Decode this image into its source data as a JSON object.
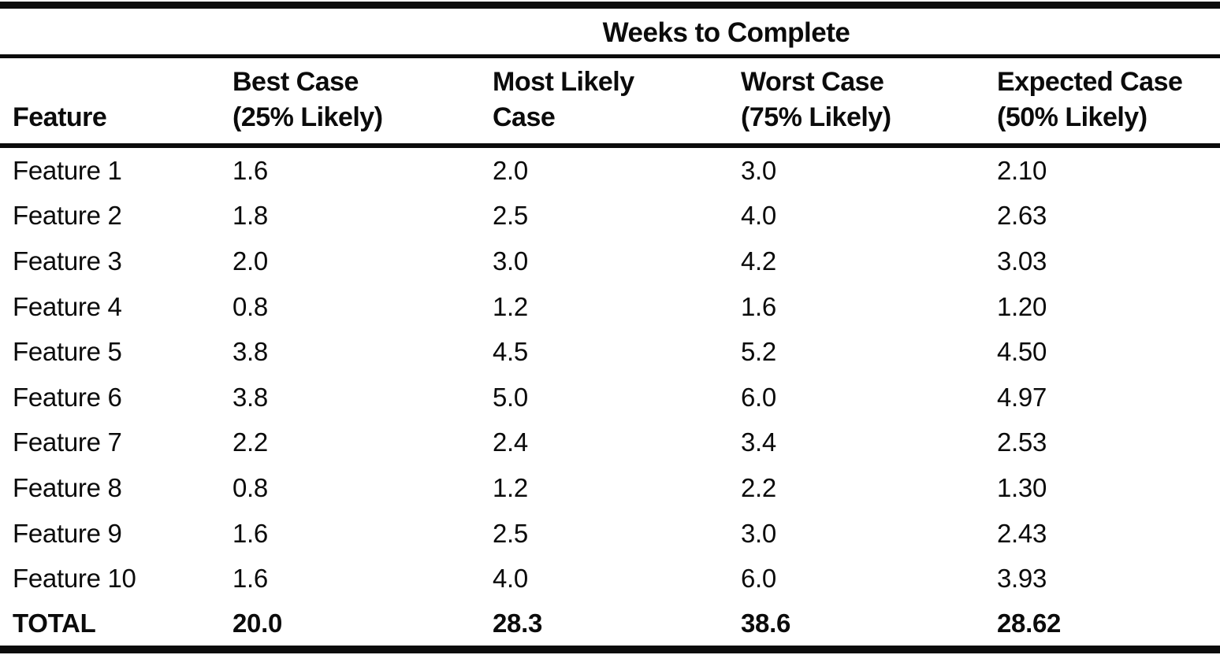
{
  "table": {
    "spanner": "Weeks to Complete",
    "feature_header": "Feature",
    "col_headers": [
      {
        "line1": "Best Case",
        "line2": "(25% Likely)"
      },
      {
        "line1": "Most Likely",
        "line2": "Case"
      },
      {
        "line1": "Worst Case",
        "line2": "(75% Likely)"
      },
      {
        "line1": "Expected Case",
        "line2": "(50% Likely)"
      }
    ],
    "rows": [
      {
        "feature": "Feature 1",
        "best": "1.6",
        "likely": "2.0",
        "worst": "3.0",
        "expected": "2.10"
      },
      {
        "feature": "Feature 2",
        "best": "1.8",
        "likely": "2.5",
        "worst": "4.0",
        "expected": "2.63"
      },
      {
        "feature": "Feature 3",
        "best": "2.0",
        "likely": "3.0",
        "worst": "4.2",
        "expected": "3.03"
      },
      {
        "feature": "Feature 4",
        "best": "0.8",
        "likely": "1.2",
        "worst": "1.6",
        "expected": "1.20"
      },
      {
        "feature": "Feature 5",
        "best": "3.8",
        "likely": "4.5",
        "worst": "5.2",
        "expected": "4.50"
      },
      {
        "feature": "Feature 6",
        "best": "3.8",
        "likely": "5.0",
        "worst": "6.0",
        "expected": "4.97"
      },
      {
        "feature": "Feature 7",
        "best": "2.2",
        "likely": "2.4",
        "worst": "3.4",
        "expected": "2.53"
      },
      {
        "feature": "Feature 8",
        "best": "0.8",
        "likely": "1.2",
        "worst": "2.2",
        "expected": "1.30"
      },
      {
        "feature": "Feature 9",
        "best": "1.6",
        "likely": "2.5",
        "worst": "3.0",
        "expected": "2.43"
      },
      {
        "feature": "Feature 10",
        "best": "1.6",
        "likely": "4.0",
        "worst": "6.0",
        "expected": "3.93"
      }
    ],
    "total": {
      "label": "TOTAL",
      "best": "20.0",
      "likely": "28.3",
      "worst": "38.6",
      "expected": "28.62"
    }
  },
  "chart_data": {
    "type": "table",
    "title": "Weeks to Complete",
    "categories": [
      "Feature 1",
      "Feature 2",
      "Feature 3",
      "Feature 4",
      "Feature 5",
      "Feature 6",
      "Feature 7",
      "Feature 8",
      "Feature 9",
      "Feature 10",
      "TOTAL"
    ],
    "series": [
      {
        "name": "Best Case (25% Likely)",
        "values": [
          1.6,
          1.8,
          2.0,
          0.8,
          3.8,
          3.8,
          2.2,
          0.8,
          1.6,
          1.6,
          20.0
        ]
      },
      {
        "name": "Most Likely Case",
        "values": [
          2.0,
          2.5,
          3.0,
          1.2,
          4.5,
          5.0,
          2.4,
          1.2,
          2.5,
          4.0,
          28.3
        ]
      },
      {
        "name": "Worst Case (75% Likely)",
        "values": [
          3.0,
          4.0,
          4.2,
          1.6,
          5.2,
          6.0,
          3.4,
          2.2,
          3.0,
          6.0,
          38.6
        ]
      },
      {
        "name": "Expected Case (50% Likely)",
        "values": [
          2.1,
          2.63,
          3.03,
          1.2,
          4.5,
          4.97,
          2.53,
          1.3,
          2.43,
          3.93,
          28.62
        ]
      }
    ],
    "colors": {
      "ink": "#0b0b0b",
      "paper": "#ffffff"
    }
  }
}
